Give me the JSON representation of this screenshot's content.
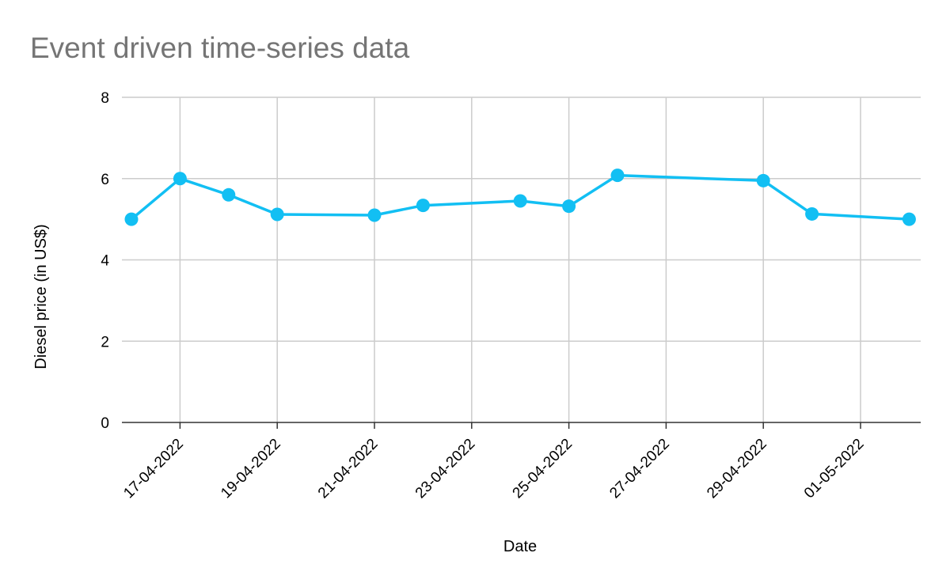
{
  "chart_data": {
    "type": "line",
    "title": "Event driven time-series data",
    "xlabel": "Date",
    "ylabel": "Diesel price (in US$)",
    "ylim": [
      0,
      8
    ],
    "yticks": [
      "0",
      "2",
      "4",
      "6",
      "8"
    ],
    "x_tick_labels": [
      "17-04-2022",
      "19-04-2022",
      "21-04-2022",
      "23-04-2022",
      "25-04-2022",
      "27-04-2022",
      "29-04-2022",
      "01-05-2022"
    ],
    "grid": true,
    "legend": "none",
    "series": [
      {
        "color": "#12bff3",
        "points": [
          {
            "x": "2022-04-16",
            "y": 5.0
          },
          {
            "x": "2022-04-17",
            "y": 6.0
          },
          {
            "x": "2022-04-18",
            "y": 5.6
          },
          {
            "x": "2022-04-19",
            "y": 5.12
          },
          {
            "x": "2022-04-21",
            "y": 5.1
          },
          {
            "x": "2022-04-22",
            "y": 5.34
          },
          {
            "x": "2022-04-24",
            "y": 5.45
          },
          {
            "x": "2022-04-25",
            "y": 5.32
          },
          {
            "x": "2022-04-26",
            "y": 6.08
          },
          {
            "x": "2022-04-29",
            "y": 5.95
          },
          {
            "x": "2022-04-30",
            "y": 5.13
          },
          {
            "x": "2022-05-02",
            "y": 5.0
          }
        ]
      }
    ]
  }
}
